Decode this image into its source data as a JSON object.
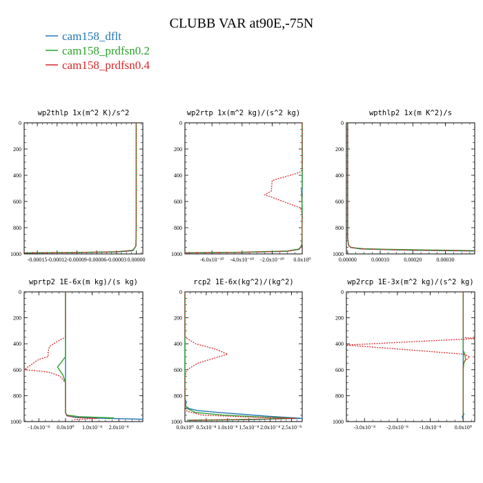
{
  "title": "CLUBB VAR at90E,-75N",
  "legend": [
    {
      "label": "cam158_dflt",
      "color": "#1f77b4",
      "dash": "solid"
    },
    {
      "label": "cam158_prdfsn0.2",
      "color": "#2ca02c",
      "dash": "solid"
    },
    {
      "label": "cam158_prdfsn0.4",
      "color": "#d62728",
      "dash": "dotted"
    }
  ],
  "chart_data": [
    {
      "type": "line",
      "title": "wp2thlp   1x(m^2 K)/s^2",
      "ylim": [
        1000,
        0
      ],
      "xlim": [
        -0.00017,
        1e-05
      ],
      "yticks": [
        0,
        200,
        400,
        600,
        800,
        1000
      ],
      "ytick_labels": [
        "0",
        "200",
        "400",
        "600",
        "800",
        "1000"
      ],
      "xticks": [
        -0.00015,
        -0.00012,
        -9e-05,
        -6e-05,
        -3e-05,
        0.0
      ],
      "xtick_labels": [
        "-0.00015",
        "-0.00012",
        "-0.00009",
        "-0.00006",
        "-0.00003",
        "0.00000"
      ],
      "series": [
        {
          "name": "cam158_dflt",
          "points": [
            [
              0,
              0
            ],
            [
              0,
              800
            ],
            [
              -5e-07,
              940
            ],
            [
              -5e-06,
              975
            ],
            [
              -3e-05,
              985
            ],
            [
              -9e-05,
              990
            ],
            [
              -0.00017,
              993
            ]
          ]
        },
        {
          "name": "cam158_prdfsn0.2",
          "points": [
            [
              0,
              0
            ],
            [
              0,
              800
            ],
            [
              -5e-07,
              940
            ],
            [
              -5e-06,
              972
            ],
            [
              -3e-05,
              983
            ],
            [
              -9e-05,
              989
            ],
            [
              -0.00017,
              992
            ]
          ]
        },
        {
          "name": "cam158_prdfsn0.4",
          "points": [
            [
              0,
              0
            ],
            [
              0,
              800
            ],
            [
              -5e-07,
              942
            ],
            [
              -6e-06,
              974
            ],
            [
              -3e-05,
              984
            ],
            [
              -9e-05,
              990
            ],
            [
              -0.00017,
              993
            ]
          ]
        }
      ]
    },
    {
      "type": "line",
      "title": "wp2rtp   1x(m^2 kg)/(s^2 kg)",
      "ylim": [
        1000,
        0
      ],
      "xlim": [
        -7.8e-10,
        0.0
      ],
      "yticks": [
        0,
        200,
        400,
        600,
        800,
        1000
      ],
      "ytick_labels": [
        "0",
        "200",
        "400",
        "600",
        "800",
        "1000"
      ],
      "xticks": [
        -6e-10,
        -4e-10,
        -2e-10,
        0.0
      ],
      "xtick_labels": [
        "-6.0x10⁻¹⁰",
        "-4.0x10⁻¹⁰",
        "-2.0x10⁻¹⁰",
        "0.0x10⁰"
      ],
      "series": [
        {
          "name": "cam158_dflt",
          "points": [
            [
              0,
              0
            ],
            [
              0,
              500
            ],
            [
              -3e-12,
              550
            ],
            [
              -2e-12,
              600
            ],
            [
              0,
              700
            ],
            [
              -2e-12,
              930
            ],
            [
              -2e-11,
              965
            ],
            [
              -1e-10,
              980
            ],
            [
              -4e-10,
              988
            ],
            [
              -7.8e-10,
              992
            ]
          ]
        },
        {
          "name": "cam158_prdfsn0.2",
          "points": [
            [
              0,
              0
            ],
            [
              0,
              480
            ],
            [
              -5e-12,
              520
            ],
            [
              -2e-12,
              570
            ],
            [
              0,
              650
            ],
            [
              -2e-12,
              930
            ],
            [
              -2e-11,
              962
            ],
            [
              -1e-10,
              978
            ],
            [
              -4e-10,
              987
            ],
            [
              -7.8e-10,
              991
            ]
          ]
        },
        {
          "name": "cam158_prdfsn0.4",
          "points": [
            [
              0,
              0
            ],
            [
              0,
              360
            ],
            [
              -2e-11,
              380
            ],
            [
              -2e-10,
              440
            ],
            [
              -2.05e-10,
              520
            ],
            [
              -2.5e-10,
              550
            ],
            [
              -2.2e-10,
              560
            ],
            [
              -1e-11,
              650
            ],
            [
              0,
              700
            ],
            [
              -2e-12,
              930
            ],
            [
              -2e-11,
              965
            ],
            [
              -1e-10,
              980
            ],
            [
              -4e-10,
              988
            ],
            [
              -7.8e-10,
              992
            ]
          ]
        }
      ]
    },
    {
      "type": "line",
      "title": "wpthlp2   1x(m K^2)/s",
      "ylim": [
        1000,
        0
      ],
      "xlim": [
        -4e-06,
        0.00039
      ],
      "yticks": [
        0,
        200,
        400,
        600,
        800,
        1000
      ],
      "ytick_labels": [
        "0",
        "200",
        "400",
        "600",
        "800",
        "1000"
      ],
      "xticks": [
        0.0,
        0.0001,
        0.0002,
        0.0003
      ],
      "xtick_labels": [
        "0.00000",
        "0.00010",
        "0.00020",
        "0.00030"
      ],
      "series": [
        {
          "name": "cam158_dflt",
          "points": [
            [
              0,
              0
            ],
            [
              0,
              880
            ],
            [
              3e-06,
              935
            ],
            [
              1e-05,
              950
            ],
            [
              4e-05,
              962
            ],
            [
              0.0002,
              972
            ],
            [
              0.00039,
              978
            ]
          ]
        },
        {
          "name": "cam158_prdfsn0.2",
          "points": [
            [
              0,
              0
            ],
            [
              0,
              880
            ],
            [
              3e-06,
              937
            ],
            [
              1e-05,
              952
            ],
            [
              5e-05,
              960
            ],
            [
              0.00012,
              965
            ],
            [
              0.00025,
              970
            ],
            [
              0.00039,
              975
            ]
          ]
        },
        {
          "name": "cam158_prdfsn0.4",
          "points": [
            [
              0,
              0
            ],
            [
              0,
              880
            ],
            [
              3e-06,
              936
            ],
            [
              1e-05,
              951
            ],
            [
              4e-05,
              961
            ],
            [
              0.00015,
              970
            ],
            [
              0.00039,
              977
            ]
          ]
        }
      ]
    },
    {
      "type": "line",
      "title": "wprtp2   1E-6x(m kg)/(s kg)",
      "ylim": [
        1000,
        0
      ],
      "xlim": [
        -1.55e-08,
        2.9e-08
      ],
      "yticks": [
        0,
        200,
        400,
        600,
        800,
        1000
      ],
      "ytick_labels": [
        "0",
        "200",
        "400",
        "600",
        "800",
        "1000"
      ],
      "xticks": [
        -1e-08,
        0.0,
        1e-08,
        2e-08
      ],
      "xtick_labels": [
        "-1.0x10⁻⁸",
        "0.0x10⁰",
        "1.0x10⁻⁸",
        "2.0x10⁻⁸"
      ],
      "series": [
        {
          "name": "cam158_dflt",
          "points": [
            [
              0,
              0
            ],
            [
              0,
              930
            ],
            [
              5e-10,
              955
            ],
            [
              4e-09,
              968
            ],
            [
              1.5e-08,
              975
            ],
            [
              2.9e-08,
              982
            ]
          ]
        },
        {
          "name": "cam158_prdfsn0.2",
          "points": [
            [
              0,
              0
            ],
            [
              0,
              500
            ],
            [
              -1.5e-09,
              540
            ],
            [
              -3e-09,
              580
            ],
            [
              -1e-09,
              640
            ],
            [
              0,
              700
            ],
            [
              0,
              930
            ],
            [
              5e-10,
              950
            ],
            [
              5e-09,
              962
            ],
            [
              1.8e-08,
              972
            ],
            [
              1.6e-08,
              978
            ]
          ]
        },
        {
          "name": "cam158_prdfsn0.4",
          "points": [
            [
              0,
              0
            ],
            [
              0,
              350
            ],
            [
              -2e-09,
              370
            ],
            [
              -6e-09,
              420
            ],
            [
              -6.5e-09,
              460
            ],
            [
              -6.5e-09,
              500
            ],
            [
              -1e-08,
              520
            ],
            [
              -1.55e-08,
              600
            ],
            [
              -1e-08,
              610
            ],
            [
              -6e-09,
              620
            ],
            [
              -2e-09,
              650
            ],
            [
              0,
              700
            ],
            [
              0,
              930
            ],
            [
              5e-10,
              955
            ],
            [
              4e-09,
              970
            ],
            [
              1.2e-08,
              976
            ],
            [
              3e-09,
              985
            ]
          ]
        }
      ]
    },
    {
      "type": "line",
      "title": "rcp2   1E-6x(kg^2)/(kg^2)",
      "ylim": [
        1000,
        0
      ],
      "xlim": [
        0.0,
        2.75e-08
      ],
      "yticks": [
        0,
        200,
        400,
        600,
        800,
        1000
      ],
      "ytick_labels": [
        "0",
        "200",
        "400",
        "600",
        "800",
        "1000"
      ],
      "xticks": [
        0.0,
        5e-09,
        1e-08,
        1.5e-08,
        2e-08,
        2.5e-08
      ],
      "xtick_labels": [
        "0.0x10⁰",
        "0.5x10⁻⁸",
        "1.0x10⁻⁸",
        "1.5x10⁻⁸",
        "2.0x10⁻⁸",
        "2.5x10⁻⁸"
      ],
      "series": [
        {
          "name": "cam158_dflt",
          "points": [
            [
              0,
              0
            ],
            [
              0,
              820
            ],
            [
              3e-10,
              850
            ],
            [
              1e-10,
              880
            ],
            [
              1e-09,
              900
            ],
            [
              3e-09,
              915
            ],
            [
              8e-09,
              930
            ],
            [
              2e-08,
              960
            ],
            [
              2.75e-08,
              975
            ],
            [
              1.5e-08,
              985
            ],
            [
              1e-09,
              990
            ]
          ]
        },
        {
          "name": "cam158_prdfsn0.2",
          "points": [
            [
              0,
              0
            ],
            [
              0,
              840
            ],
            [
              2e-10,
              880
            ],
            [
              6e-10,
              900
            ],
            [
              2.5e-09,
              930
            ],
            [
              9e-09,
              950
            ],
            [
              1.8e-08,
              965
            ],
            [
              2.6e-08,
              975
            ],
            [
              1.2e-08,
              985
            ],
            [
              5e-10,
              990
            ]
          ]
        },
        {
          "name": "cam158_prdfsn0.4",
          "points": [
            [
              0,
              0
            ],
            [
              0,
              350
            ],
            [
              5e-10,
              360
            ],
            [
              2.5e-09,
              400
            ],
            [
              7e-09,
              440
            ],
            [
              1e-08,
              480
            ],
            [
              7e-09,
              510
            ],
            [
              3e-09,
              550
            ],
            [
              5e-10,
              600
            ],
            [
              0,
              650
            ],
            [
              0,
              880
            ],
            [
              5e-10,
              920
            ],
            [
              4e-09,
              950
            ],
            [
              1.5e-08,
              965
            ],
            [
              2.6e-08,
              975
            ],
            [
              1e-08,
              985
            ],
            [
              5e-10,
              990
            ]
          ]
        }
      ]
    },
    {
      "type": "line",
      "title": "wp2rcp   1E-3x(m^2 kg)/(s^2 kg)",
      "ylim": [
        1000,
        0
      ],
      "xlim": [
        -3.55e-08,
        3.5e-09
      ],
      "yticks": [
        0,
        200,
        400,
        600,
        800,
        1000
      ],
      "ytick_labels": [
        "0",
        "200",
        "400",
        "600",
        "800",
        "1000"
      ],
      "xticks": [
        -3e-08,
        -2e-08,
        -1e-08,
        0.0
      ],
      "xtick_labels": [
        "-3.0x10⁻⁸",
        "-2.0x10⁻⁸",
        "-1.0x10⁻⁸",
        "0.0x10⁰"
      ],
      "series": [
        {
          "name": "cam158_dflt",
          "points": [
            [
              0,
              0
            ],
            [
              0,
              930
            ],
            [
              2e-10,
              945
            ],
            [
              -3e-10,
              960
            ],
            [
              0,
              990
            ]
          ]
        },
        {
          "name": "cam158_prdfsn0.2",
          "points": [
            [
              0,
              0
            ],
            [
              0,
              450
            ],
            [
              5e-10,
              480
            ],
            [
              7e-10,
              520
            ],
            [
              2e-10,
              550
            ],
            [
              0,
              600
            ],
            [
              0,
              990
            ]
          ]
        },
        {
          "name": "cam158_prdfsn0.4",
          "points": [
            [
              0,
              0
            ],
            [
              0,
              350
            ],
            [
              3.5e-09,
              360
            ],
            [
              -3.55e-08,
              410
            ],
            [
              -1.5e-08,
              450
            ],
            [
              0,
              480
            ],
            [
              2e-09,
              500
            ],
            [
              2e-10,
              540
            ],
            [
              0,
              560
            ],
            [
              0,
              990
            ]
          ]
        }
      ]
    }
  ]
}
